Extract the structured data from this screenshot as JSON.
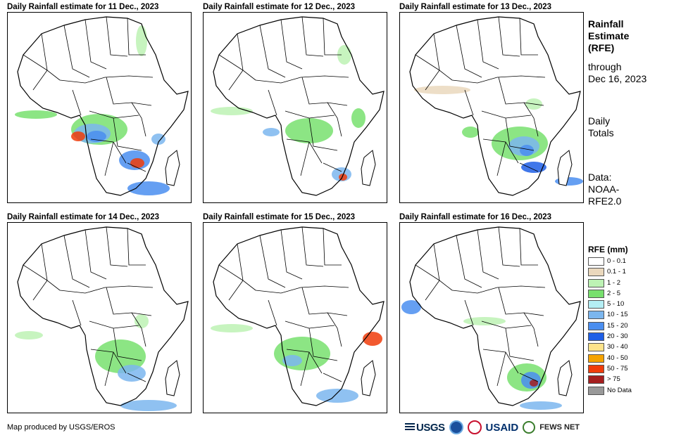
{
  "panels": [
    {
      "title": "Daily Rainfall estimate for 11 Dec., 2023"
    },
    {
      "title": "Daily Rainfall estimate for 12 Dec., 2023"
    },
    {
      "title": "Daily Rainfall estimate for 13 Dec., 2023"
    },
    {
      "title": "Daily Rainfall estimate for 14 Dec., 2023"
    },
    {
      "title": "Daily Rainfall estimate for 15 Dec., 2023"
    },
    {
      "title": "Daily Rainfall estimate for 16 Dec., 2023"
    }
  ],
  "sidebar": {
    "title_line1": "Rainfall",
    "title_line2": "Estimate",
    "title_line3": "(RFE)",
    "through_label": "through",
    "through_date": "Dec 16, 2023",
    "totals_line1": "Daily",
    "totals_line2": "Totals",
    "data_line1": "Data:",
    "data_line2": "NOAA-",
    "data_line3": "RFE2.0"
  },
  "legend": {
    "title": "RFE (mm)",
    "items": [
      {
        "label": "0 - 0.1",
        "color": "#ffffff"
      },
      {
        "label": "0.1 - 1",
        "color": "#ead8bd"
      },
      {
        "label": "1 - 2",
        "color": "#bdf2b4"
      },
      {
        "label": "2 - 5",
        "color": "#78e06e"
      },
      {
        "label": "5 - 10",
        "color": "#b4eef4"
      },
      {
        "label": "10 - 15",
        "color": "#7bb6ee"
      },
      {
        "label": "15 - 20",
        "color": "#4a8ef0"
      },
      {
        "label": "20 - 30",
        "color": "#1f5fe6"
      },
      {
        "label": "30 - 40",
        "color": "#fde38a"
      },
      {
        "label": "40 - 50",
        "color": "#f5a300"
      },
      {
        "label": "50 - 75",
        "color": "#f03c0a"
      },
      {
        "label": "> 75",
        "color": "#a51e1e"
      },
      {
        "label": "No Data",
        "color": "#999999"
      }
    ]
  },
  "footer": {
    "credit": "Map produced by USGS/EROS",
    "logo_usgs": "USGS",
    "logo_usaid": "USAID",
    "logo_fews": "FEWS NET"
  }
}
